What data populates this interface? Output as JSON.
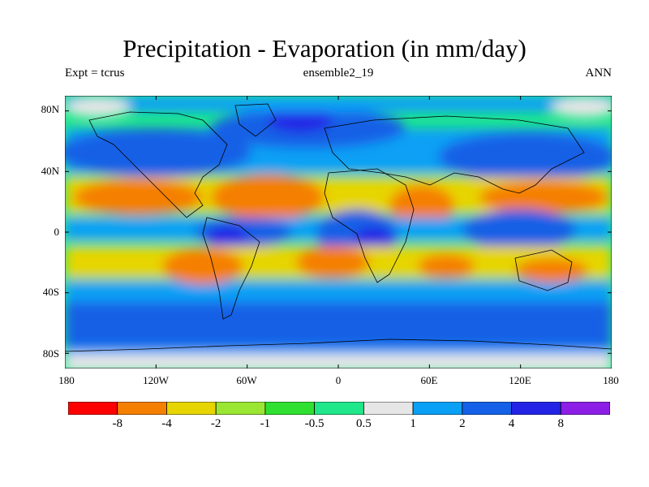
{
  "title": "Precipitation - Evaporation (in mm/day)",
  "left_label": "Expt = tcrus",
  "center_label": "ensemble2_19",
  "right_label": "ANN",
  "lat_labels": [
    "80N",
    "40N",
    "0",
    "40S",
    "80S"
  ],
  "lon_labels": [
    "180",
    "120W",
    "60W",
    "0",
    "60E",
    "120E",
    "180"
  ],
  "colorbar": {
    "colors": [
      "#ff0000",
      "#f57f00",
      "#e6d500",
      "#9be632",
      "#30e030",
      "#20e88a",
      "#e6e6e6",
      "#0aa0f5",
      "#1460e6",
      "#2323e6",
      "#8c1ee6"
    ],
    "labels": [
      "-8",
      "-4",
      "-2",
      "-1",
      "-0.5",
      "0.5",
      "1",
      "2",
      "4",
      "8"
    ]
  }
}
